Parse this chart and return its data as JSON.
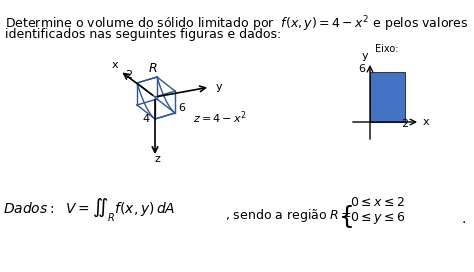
{
  "background_color": "#ffffff",
  "title_line1": "Determine o volume do sólido limitado por  $f(x, y) = 4 - x^2$ e pelos valores",
  "title_line2": "identificados nas seguintes figuras e dados:",
  "label_z_eq": "$z = 4 - x^2$",
  "label_4": "4",
  "label_6_3d": "6",
  "label_2_3d": "2",
  "label_R": "R",
  "label_z_axis": "z",
  "label_y_axis": "y",
  "label_x_axis": "x",
  "label_6_2d": "6",
  "label_2_2d": "2",
  "label_eixo": "Eixo:",
  "rect_color": "#4472C4",
  "line_color": "#2F5597",
  "dados_text": "*Dados:*  $V = \\iint_R f(x, y)\\, dA$",
  "sendo_text": ", sendo a região $R = $",
  "region_line1": "$0 \\leq x \\leq 2$",
  "region_line2": "$0 \\leq y \\leq 6$",
  "font_size_title": 9,
  "font_size_labels": 8,
  "font_size_dados": 10
}
